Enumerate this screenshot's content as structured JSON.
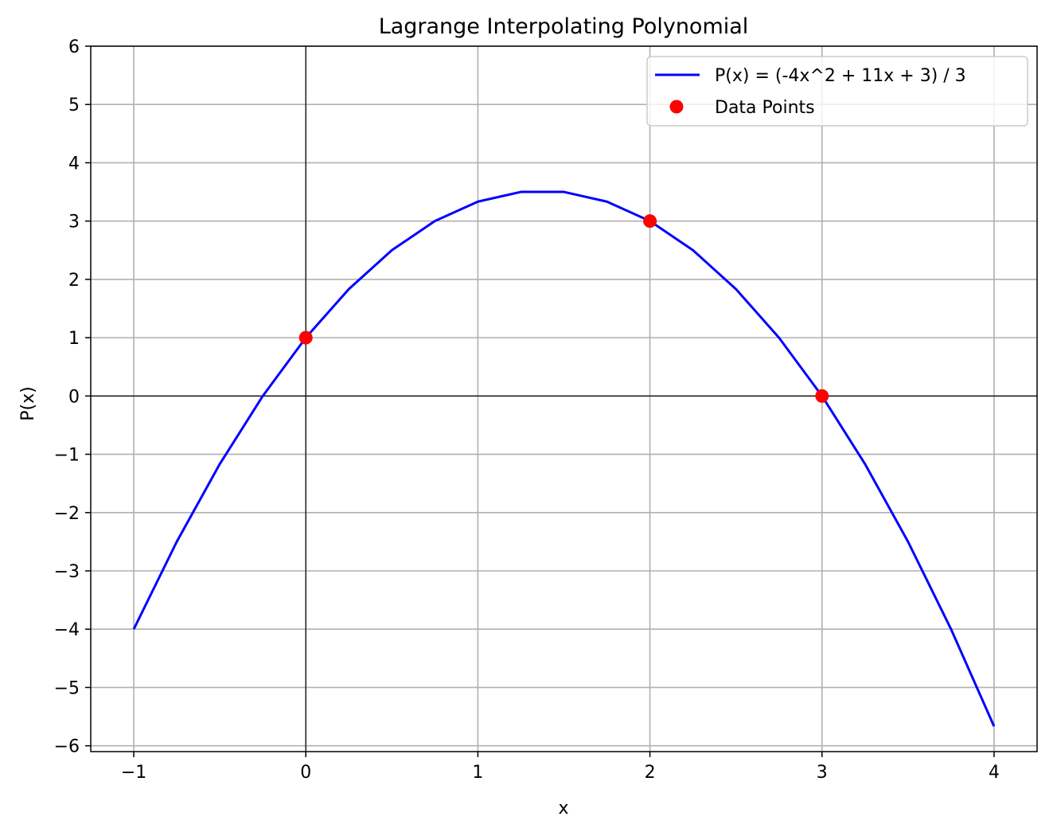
{
  "chart_data": {
    "type": "line",
    "title": "Lagrange Interpolating Polynomial",
    "xlabel": "x",
    "ylabel": "P(x)",
    "xlim": [
      -1.25,
      4.25
    ],
    "ylim": [
      -6.1,
      6
    ],
    "x_ticks": [
      -1,
      0,
      1,
      2,
      3,
      4
    ],
    "x_tick_labels": [
      "−1",
      "0",
      "1",
      "2",
      "3",
      "4"
    ],
    "y_ticks": [
      -6,
      -5,
      -4,
      -3,
      -2,
      -1,
      0,
      1,
      2,
      3,
      4,
      5,
      6
    ],
    "y_tick_labels": [
      "−6",
      "−5",
      "−4",
      "−3",
      "−2",
      "−1",
      "0",
      "1",
      "2",
      "3",
      "4",
      "5",
      "6"
    ],
    "grid": true,
    "legend_position": "top-right",
    "reference_lines": {
      "x": 0,
      "y": 0
    },
    "series": [
      {
        "name": "P(x) = (-4x^2 + 11x + 3) / 3",
        "type": "line",
        "color": "#0000ff",
        "x": [
          -1,
          -0.75,
          -0.5,
          -0.25,
          0,
          0.25,
          0.5,
          0.75,
          1,
          1.25,
          1.5,
          1.75,
          2,
          2.25,
          2.5,
          2.75,
          3,
          3.25,
          3.5,
          3.75,
          4
        ],
        "y": [
          -4,
          -2.5,
          -1.1667,
          0,
          1,
          1.8333,
          2.5,
          3,
          3.3333,
          3.5,
          3.5,
          3.3333,
          3,
          2.5,
          1.8333,
          1,
          0,
          -1.1667,
          -2.5,
          -4,
          -5.6667
        ]
      },
      {
        "name": "Data Points",
        "type": "scatter",
        "color": "#ff0000",
        "x": [
          0,
          2,
          3
        ],
        "y": [
          1,
          3,
          0
        ]
      }
    ]
  }
}
